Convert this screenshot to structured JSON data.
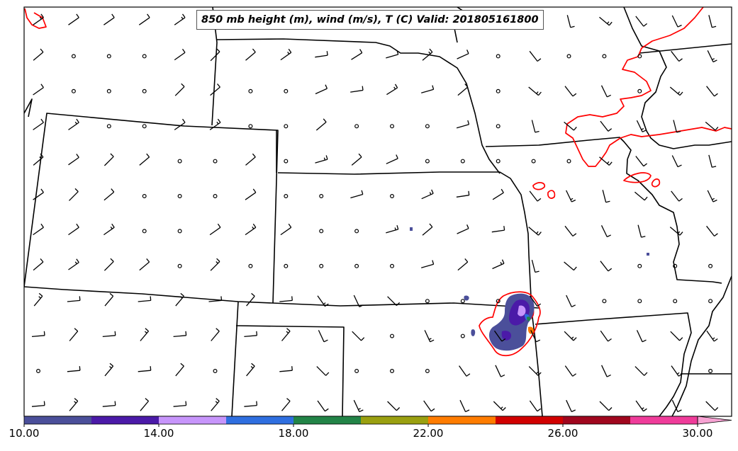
{
  "map": {
    "title": "850 mb height (m), wind (m/s), T (C) Valid: 201805161800"
  },
  "colorbar": {
    "ticks": [
      "10.00",
      "14.00",
      "18.00",
      "22.00",
      "26.00",
      "30.00"
    ],
    "colors": [
      "#4b4f9a",
      "#4b1aa8",
      "#c795fb",
      "#2f6fe0",
      "#228447",
      "#9aa010",
      "#ff7c00",
      "#d10000",
      "#a0061e",
      "#ef3c9a"
    ],
    "extend_color": "#f7a3d3"
  },
  "styles": {
    "border_color": "#000000",
    "isotherm_color": "#ff0000",
    "barb_color": "#000000"
  }
}
